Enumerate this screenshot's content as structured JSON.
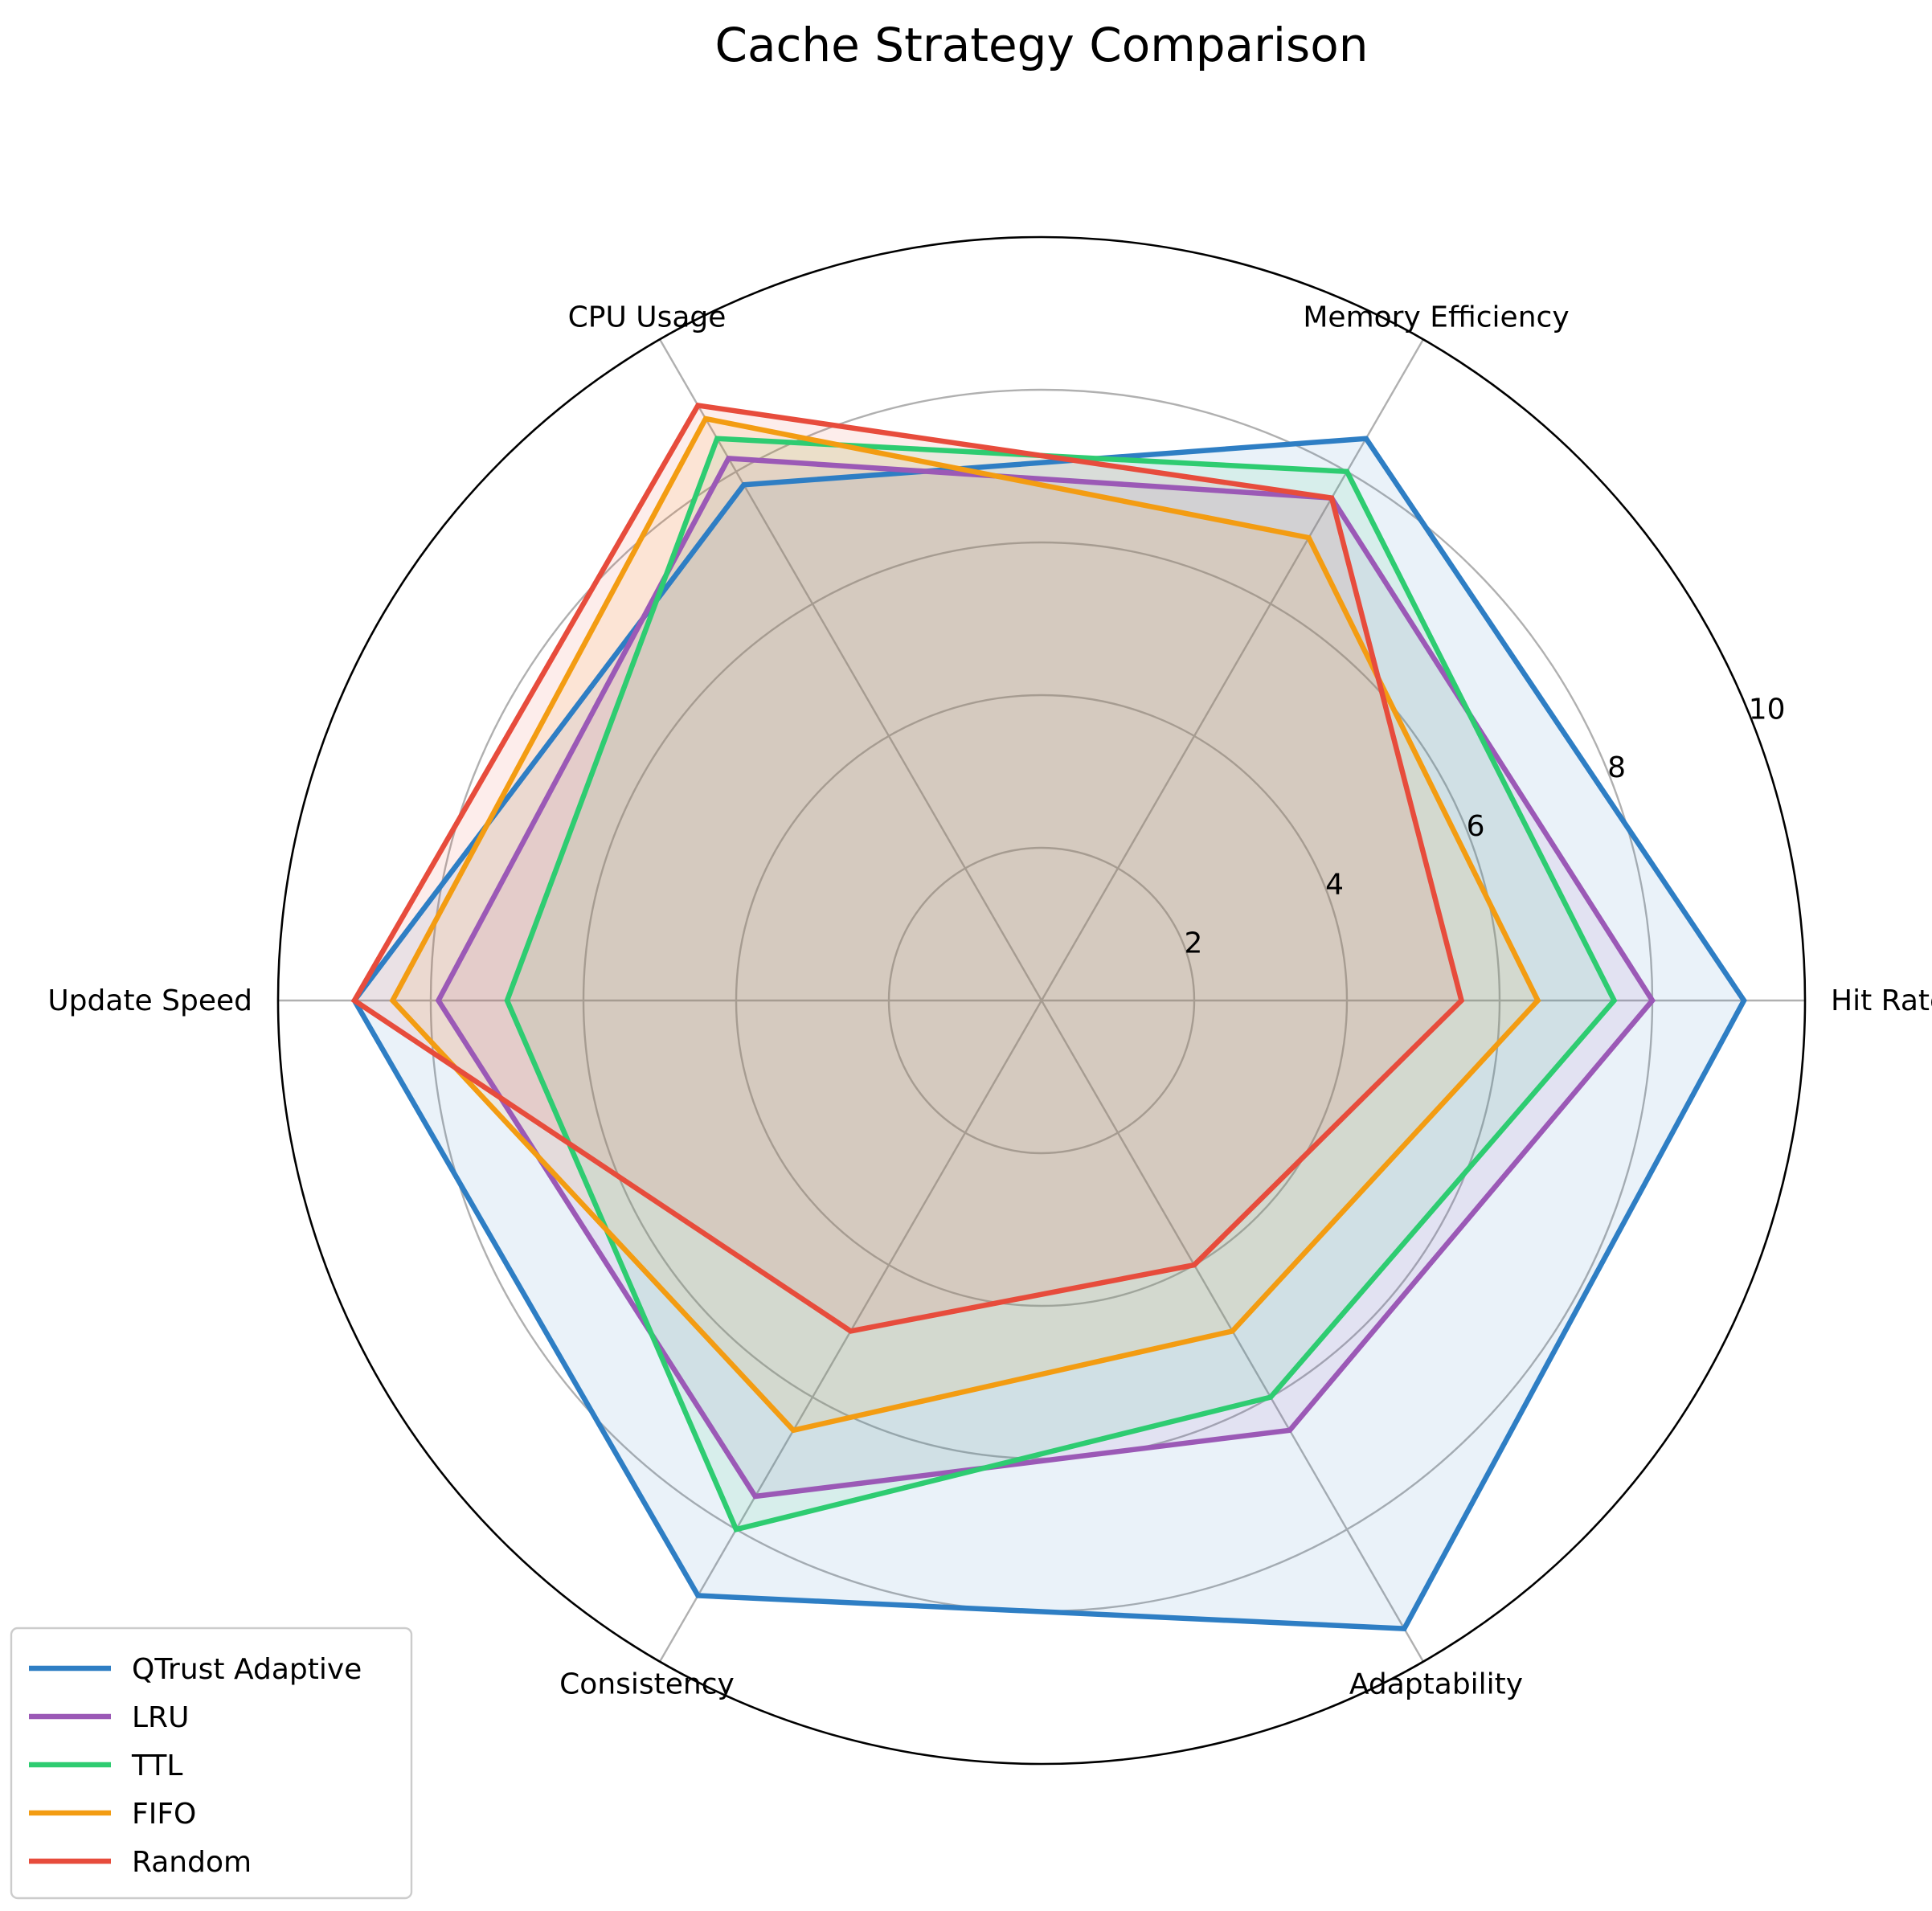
{
  "chart_data": {
    "type": "radar",
    "title": "Cache Strategy Comparison",
    "axes": [
      "Hit Rate",
      "Memory Efficiency",
      "CPU Usage",
      "Update Speed",
      "Consistency",
      "Adaptability"
    ],
    "rlim": [
      0,
      10
    ],
    "radial_ticks": [
      2,
      4,
      6,
      8,
      10
    ],
    "radial_tick_labels": [
      "2",
      "4",
      "6",
      "8",
      "10"
    ],
    "grid": true,
    "legend_position": "lower-left",
    "series": [
      {
        "name": "QTrust Adaptive",
        "color": "#2E7EC4",
        "values": [
          9.2,
          8.5,
          7.8,
          9.0,
          9.0,
          9.5
        ]
      },
      {
        "name": "LRU",
        "color": "#9B59B6",
        "values": [
          8.0,
          7.6,
          8.2,
          7.9,
          7.5,
          6.5
        ]
      },
      {
        "name": "TTL",
        "color": "#2ECC71",
        "values": [
          7.5,
          8.0,
          8.5,
          7.0,
          8.0,
          6.0
        ]
      },
      {
        "name": "FIFO",
        "color": "#F39C12",
        "values": [
          6.5,
          7.0,
          8.8,
          8.5,
          6.5,
          5.0
        ]
      },
      {
        "name": "Random",
        "color": "#E74C3C",
        "values": [
          5.5,
          7.6,
          9.0,
          9.0,
          5.0,
          4.0
        ]
      }
    ]
  }
}
